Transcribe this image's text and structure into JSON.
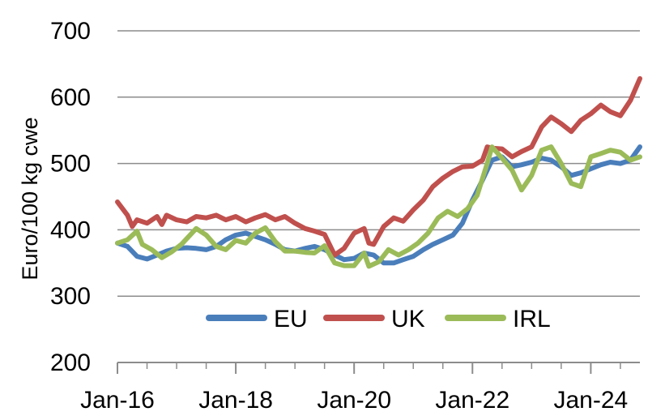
{
  "chart_data": {
    "type": "line",
    "title": "",
    "xlabel": "",
    "ylabel": "Euro/100 kg cwe",
    "ylim": [
      200,
      700
    ],
    "yticks": [
      200,
      300,
      400,
      500,
      600,
      700
    ],
    "xlim": [
      2016.0,
      2024.83
    ],
    "xtick_labels": [
      "Jan-16",
      "Jan-18",
      "Jan-20",
      "Jan-22",
      "Jan-24"
    ],
    "grid": "horizontal",
    "legend_position": "bottom-center",
    "series": [
      {
        "name": "EU",
        "color": "#4a7ebb",
        "points": [
          [
            2016.0,
            380
          ],
          [
            2016.17,
            375
          ],
          [
            2016.33,
            360
          ],
          [
            2016.5,
            356
          ],
          [
            2016.67,
            362
          ],
          [
            2016.83,
            368
          ],
          [
            2017.0,
            372
          ],
          [
            2017.17,
            373
          ],
          [
            2017.33,
            372
          ],
          [
            2017.5,
            370
          ],
          [
            2017.67,
            375
          ],
          [
            2017.83,
            385
          ],
          [
            2018.0,
            392
          ],
          [
            2018.17,
            395
          ],
          [
            2018.33,
            390
          ],
          [
            2018.5,
            385
          ],
          [
            2018.67,
            378
          ],
          [
            2018.83,
            370
          ],
          [
            2019.0,
            368
          ],
          [
            2019.17,
            372
          ],
          [
            2019.33,
            375
          ],
          [
            2019.5,
            370
          ],
          [
            2019.67,
            362
          ],
          [
            2019.83,
            355
          ],
          [
            2020.0,
            357
          ],
          [
            2020.17,
            365
          ],
          [
            2020.33,
            362
          ],
          [
            2020.5,
            350
          ],
          [
            2020.67,
            350
          ],
          [
            2020.83,
            355
          ],
          [
            2021.0,
            360
          ],
          [
            2021.17,
            370
          ],
          [
            2021.33,
            378
          ],
          [
            2021.5,
            385
          ],
          [
            2021.67,
            392
          ],
          [
            2021.83,
            410
          ],
          [
            2022.0,
            445
          ],
          [
            2022.17,
            475
          ],
          [
            2022.33,
            505
          ],
          [
            2022.5,
            510
          ],
          [
            2022.67,
            495
          ],
          [
            2022.83,
            498
          ],
          [
            2023.0,
            502
          ],
          [
            2023.17,
            508
          ],
          [
            2023.33,
            505
          ],
          [
            2023.5,
            495
          ],
          [
            2023.67,
            482
          ],
          [
            2023.83,
            486
          ],
          [
            2024.0,
            492
          ],
          [
            2024.17,
            498
          ],
          [
            2024.33,
            502
          ],
          [
            2024.5,
            500
          ],
          [
            2024.67,
            505
          ],
          [
            2024.83,
            525
          ]
        ]
      },
      {
        "name": "UK",
        "color": "#c0504d",
        "points": [
          [
            2016.0,
            442
          ],
          [
            2016.17,
            422
          ],
          [
            2016.25,
            405
          ],
          [
            2016.33,
            415
          ],
          [
            2016.5,
            410
          ],
          [
            2016.67,
            420
          ],
          [
            2016.75,
            408
          ],
          [
            2016.83,
            422
          ],
          [
            2017.0,
            415
          ],
          [
            2017.17,
            412
          ],
          [
            2017.33,
            420
          ],
          [
            2017.5,
            418
          ],
          [
            2017.67,
            422
          ],
          [
            2017.83,
            415
          ],
          [
            2018.0,
            420
          ],
          [
            2018.17,
            412
          ],
          [
            2018.33,
            418
          ],
          [
            2018.5,
            423
          ],
          [
            2018.67,
            415
          ],
          [
            2018.83,
            420
          ],
          [
            2019.0,
            410
          ],
          [
            2019.17,
            402
          ],
          [
            2019.33,
            398
          ],
          [
            2019.5,
            393
          ],
          [
            2019.67,
            362
          ],
          [
            2019.83,
            372
          ],
          [
            2020.0,
            395
          ],
          [
            2020.17,
            402
          ],
          [
            2020.25,
            380
          ],
          [
            2020.33,
            378
          ],
          [
            2020.5,
            405
          ],
          [
            2020.67,
            418
          ],
          [
            2020.83,
            413
          ],
          [
            2021.0,
            430
          ],
          [
            2021.17,
            445
          ],
          [
            2021.33,
            465
          ],
          [
            2021.5,
            478
          ],
          [
            2021.67,
            488
          ],
          [
            2021.83,
            495
          ],
          [
            2022.0,
            496
          ],
          [
            2022.17,
            505
          ],
          [
            2022.25,
            525
          ],
          [
            2022.33,
            523
          ],
          [
            2022.5,
            522
          ],
          [
            2022.67,
            510
          ],
          [
            2022.83,
            518
          ],
          [
            2023.0,
            525
          ],
          [
            2023.17,
            555
          ],
          [
            2023.33,
            570
          ],
          [
            2023.5,
            560
          ],
          [
            2023.67,
            548
          ],
          [
            2023.83,
            565
          ],
          [
            2024.0,
            575
          ],
          [
            2024.17,
            588
          ],
          [
            2024.33,
            578
          ],
          [
            2024.5,
            572
          ],
          [
            2024.67,
            595
          ],
          [
            2024.83,
            628
          ]
        ]
      },
      {
        "name": "IRL",
        "color": "#9bbb59",
        "points": [
          [
            2016.0,
            380
          ],
          [
            2016.17,
            385
          ],
          [
            2016.33,
            398
          ],
          [
            2016.42,
            378
          ],
          [
            2016.58,
            370
          ],
          [
            2016.75,
            358
          ],
          [
            2016.92,
            367
          ],
          [
            2017.08,
            378
          ],
          [
            2017.33,
            402
          ],
          [
            2017.5,
            392
          ],
          [
            2017.67,
            375
          ],
          [
            2017.83,
            370
          ],
          [
            2018.0,
            384
          ],
          [
            2018.17,
            380
          ],
          [
            2018.33,
            395
          ],
          [
            2018.5,
            403
          ],
          [
            2018.67,
            382
          ],
          [
            2018.83,
            368
          ],
          [
            2019.0,
            368
          ],
          [
            2019.17,
            366
          ],
          [
            2019.33,
            365
          ],
          [
            2019.5,
            376
          ],
          [
            2019.67,
            350
          ],
          [
            2019.83,
            346
          ],
          [
            2020.0,
            346
          ],
          [
            2020.17,
            365
          ],
          [
            2020.25,
            345
          ],
          [
            2020.42,
            352
          ],
          [
            2020.58,
            370
          ],
          [
            2020.75,
            362
          ],
          [
            2020.92,
            370
          ],
          [
            2021.08,
            380
          ],
          [
            2021.25,
            395
          ],
          [
            2021.42,
            418
          ],
          [
            2021.58,
            428
          ],
          [
            2021.75,
            420
          ],
          [
            2021.92,
            432
          ],
          [
            2022.08,
            452
          ],
          [
            2022.25,
            500
          ],
          [
            2022.33,
            525
          ],
          [
            2022.5,
            508
          ],
          [
            2022.67,
            490
          ],
          [
            2022.83,
            460
          ],
          [
            2023.0,
            482
          ],
          [
            2023.17,
            520
          ],
          [
            2023.33,
            525
          ],
          [
            2023.5,
            500
          ],
          [
            2023.67,
            470
          ],
          [
            2023.83,
            465
          ],
          [
            2024.0,
            510
          ],
          [
            2024.17,
            515
          ],
          [
            2024.33,
            520
          ],
          [
            2024.5,
            517
          ],
          [
            2024.67,
            505
          ],
          [
            2024.83,
            510
          ]
        ]
      }
    ]
  }
}
